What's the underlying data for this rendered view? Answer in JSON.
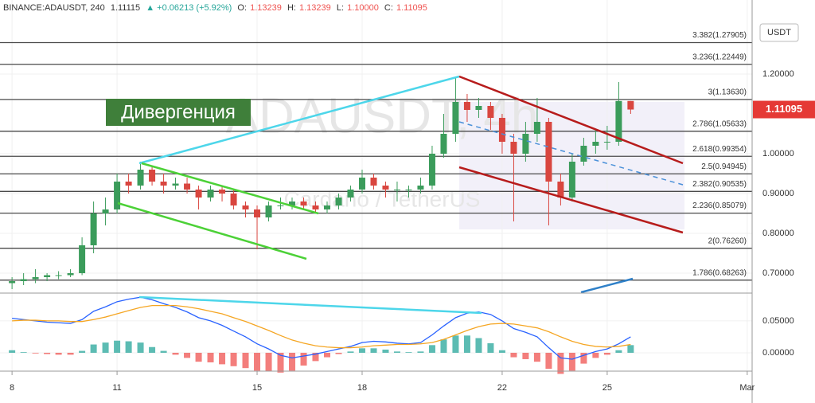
{
  "header": {
    "symbol": "BINANCE:ADAUSDT, 240",
    "price": "1.11115",
    "change": "▲ +0.06213 (+5.92%)",
    "o_label": "O:",
    "o": "1.13239",
    "h_label": "H:",
    "h": "1.13239",
    "l_label": "L:",
    "l": "1.10000",
    "c_label": "C:",
    "c": "1.11095",
    "change_color": "#26a69a",
    "ohlc_color": "#ef5350"
  },
  "currency": "USDT",
  "watermark": {
    "symbol": "ADAUSDT, 4h",
    "description": "Cardano / TetherUS"
  },
  "annotation": "Дивергенция",
  "chart_data": [
    {
      "type": "candlestick",
      "up_color": "#3b9c5b",
      "down_color": "#d9463f",
      "xlim": [
        7.77,
        29.14
      ],
      "ylim": [
        0.65,
        1.386
      ],
      "xticks": [
        8,
        11,
        15,
        18,
        22,
        25,
        {
          "value": 29,
          "label": "Mar"
        }
      ],
      "yticks": [
        {
          "value": 1.2,
          "label": "1.20000"
        },
        {
          "value": 1,
          "label": "1.00000"
        },
        {
          "value": 0.9,
          "label": "0.90000"
        },
        {
          "value": 0.8,
          "label": "0.80000"
        },
        {
          "value": 0.7,
          "label": "0.70000"
        }
      ],
      "last_price": 1.11095,
      "last_price_color": "#e53935",
      "fib_levels": [
        {
          "value": 1.27905,
          "label": "3.382(1.27905)"
        },
        {
          "value": 1.22449,
          "label": "3.236(1.22449)"
        },
        {
          "value": 1.1363,
          "label": "3(1.13630)"
        },
        {
          "value": 1.05633,
          "label": "2.786(1.05633)"
        },
        {
          "value": 0.99354,
          "label": "2.618(0.99354)"
        },
        {
          "value": 0.94945,
          "label": "2.5(0.94945)"
        },
        {
          "value": 0.90535,
          "label": "2.382(0.90535)"
        },
        {
          "value": 0.85079,
          "label": "2.236(0.85079)"
        },
        {
          "value": 0.7626,
          "label": "2(0.76260)"
        },
        {
          "value": 0.68263,
          "label": "1.786(0.68263)"
        }
      ],
      "x": [
        8,
        8.33,
        8.67,
        9,
        9.33,
        9.67,
        10,
        10.33,
        10.67,
        11,
        11.33,
        11.67,
        12,
        12.33,
        12.67,
        13,
        13.33,
        13.67,
        14,
        14.33,
        14.67,
        15,
        15.33,
        15.67,
        16,
        16.33,
        16.67,
        17,
        17.33,
        17.67,
        18,
        18.33,
        18.67,
        19,
        19.33,
        19.67,
        20,
        20.33,
        20.67,
        21,
        21.33,
        21.67,
        22,
        22.33,
        22.67,
        23,
        23.33,
        23.67,
        24,
        24.33,
        24.67,
        25,
        25.33,
        25.67
      ],
      "candles": [
        [
          0.675,
          0.69,
          0.66,
          0.68
        ],
        [
          0.68,
          0.7,
          0.67,
          0.685
        ],
        [
          0.685,
          0.71,
          0.675,
          0.69
        ],
        [
          0.69,
          0.7,
          0.68,
          0.695
        ],
        [
          0.695,
          0.705,
          0.685,
          0.695
        ],
        [
          0.695,
          0.71,
          0.69,
          0.7
        ],
        [
          0.7,
          0.79,
          0.695,
          0.77
        ],
        [
          0.77,
          0.88,
          0.75,
          0.85
        ],
        [
          0.85,
          0.89,
          0.82,
          0.86
        ],
        [
          0.86,
          0.95,
          0.85,
          0.93
        ],
        [
          0.93,
          0.95,
          0.9,
          0.92
        ],
        [
          0.92,
          0.98,
          0.91,
          0.96
        ],
        [
          0.96,
          0.97,
          0.92,
          0.93
        ],
        [
          0.93,
          0.95,
          0.9,
          0.92
        ],
        [
          0.92,
          0.94,
          0.91,
          0.925
        ],
        [
          0.925,
          0.94,
          0.9,
          0.91
        ],
        [
          0.91,
          0.92,
          0.86,
          0.89
        ],
        [
          0.89,
          0.92,
          0.88,
          0.91
        ],
        [
          0.91,
          0.92,
          0.88,
          0.9
        ],
        [
          0.9,
          0.91,
          0.86,
          0.87
        ],
        [
          0.87,
          0.88,
          0.84,
          0.86
        ],
        [
          0.86,
          0.87,
          0.76,
          0.84
        ],
        [
          0.84,
          0.88,
          0.83,
          0.87
        ],
        [
          0.87,
          0.89,
          0.86,
          0.87
        ],
        [
          0.87,
          0.89,
          0.86,
          0.88
        ],
        [
          0.88,
          0.89,
          0.86,
          0.87
        ],
        [
          0.87,
          0.88,
          0.85,
          0.86
        ],
        [
          0.86,
          0.88,
          0.85,
          0.87
        ],
        [
          0.87,
          0.9,
          0.86,
          0.89
        ],
        [
          0.89,
          0.92,
          0.88,
          0.91
        ],
        [
          0.91,
          0.96,
          0.9,
          0.94
        ],
        [
          0.94,
          0.95,
          0.91,
          0.92
        ],
        [
          0.92,
          0.93,
          0.89,
          0.91
        ],
        [
          0.91,
          0.93,
          0.88,
          0.91
        ],
        [
          0.91,
          0.92,
          0.89,
          0.91
        ],
        [
          0.91,
          0.94,
          0.9,
          0.92
        ],
        [
          0.92,
          1.02,
          0.91,
          1
        ],
        [
          1,
          1.1,
          0.99,
          1.05
        ],
        [
          1.05,
          1.19,
          1.03,
          1.13
        ],
        [
          1.13,
          1.15,
          1.08,
          1.11
        ],
        [
          1.11,
          1.14,
          1.09,
          1.12
        ],
        [
          1.12,
          1.13,
          1.06,
          1.09
        ],
        [
          1.09,
          1.1,
          1,
          1.03
        ],
        [
          1.03,
          1.05,
          0.83,
          1
        ],
        [
          1,
          1.08,
          0.98,
          1.05
        ],
        [
          1.05,
          1.14,
          1.03,
          1.08
        ],
        [
          1.08,
          1.09,
          0.82,
          0.93
        ],
        [
          0.93,
          0.95,
          0.87,
          0.89
        ],
        [
          0.89,
          1,
          0.88,
          0.98
        ],
        [
          0.98,
          1.04,
          0.97,
          1.02
        ],
        [
          1.02,
          1.06,
          1,
          1.03
        ],
        [
          1.03,
          1.07,
          1.01,
          1.03
        ],
        [
          1.03,
          1.18,
          1.02,
          1.13239
        ],
        [
          1.13239,
          1.13239,
          1.1,
          1.11095
        ]
      ]
    },
    {
      "type": "macd",
      "ylim": [
        -0.0275,
        0.091
      ],
      "yticks": [
        {
          "value": 0.05,
          "label": "0.05000"
        },
        {
          "value": 0,
          "label": "0.00000"
        }
      ],
      "series": [
        {
          "color": "#2962ff",
          "values": [
            0.054,
            0.052,
            0.05,
            0.048,
            0.047,
            0.046,
            0.052,
            0.065,
            0.072,
            0.08,
            0.084,
            0.087,
            0.083,
            0.077,
            0.071,
            0.064,
            0.055,
            0.05,
            0.043,
            0.034,
            0.025,
            0.014,
            0.006,
            -0.004,
            -0.008,
            -0.005,
            -0.002,
            0.002,
            0.006,
            0.01,
            0.016,
            0.018,
            0.017,
            0.015,
            0.014,
            0.016,
            0.028,
            0.042,
            0.055,
            0.062,
            0.064,
            0.06,
            0.05,
            0.038,
            0.032,
            0.025,
            0.008,
            -0.008,
            -0.01,
            -0.004,
            0.002,
            0.006,
            0.014,
            0.025
          ]
        },
        {
          "color": "#f5a623",
          "values": [
            0.05,
            0.051,
            0.051,
            0.05,
            0.05,
            0.049,
            0.049,
            0.052,
            0.056,
            0.061,
            0.066,
            0.071,
            0.074,
            0.074,
            0.074,
            0.072,
            0.069,
            0.065,
            0.061,
            0.055,
            0.049,
            0.042,
            0.035,
            0.027,
            0.02,
            0.015,
            0.011,
            0.009,
            0.008,
            0.008,
            0.009,
            0.011,
            0.012,
            0.013,
            0.013,
            0.014,
            0.016,
            0.021,
            0.028,
            0.035,
            0.041,
            0.045,
            0.046,
            0.045,
            0.042,
            0.039,
            0.033,
            0.025,
            0.018,
            0.013,
            0.01,
            0.009,
            0.01,
            0.013
          ]
        }
      ],
      "histogram": {
        "up_color": "#26a69a",
        "down_color": "#ef5350",
        "values": [
          0.004,
          0.001,
          -0.001,
          -0.002,
          -0.003,
          -0.003,
          0.003,
          0.013,
          0.016,
          0.019,
          0.018,
          0.016,
          0.009,
          0.003,
          -0.003,
          -0.008,
          -0.014,
          -0.015,
          -0.018,
          -0.021,
          -0.024,
          -0.028,
          -0.029,
          -0.031,
          -0.028,
          -0.02,
          -0.013,
          -0.007,
          -0.002,
          0.002,
          0.007,
          0.007,
          0.005,
          0.002,
          0.001,
          0.002,
          0.012,
          0.021,
          0.027,
          0.027,
          0.023,
          0.015,
          0.004,
          -0.007,
          -0.01,
          -0.014,
          -0.025,
          -0.033,
          -0.028,
          -0.017,
          -0.008,
          -0.003,
          0.004,
          0.012
        ]
      }
    }
  ]
}
